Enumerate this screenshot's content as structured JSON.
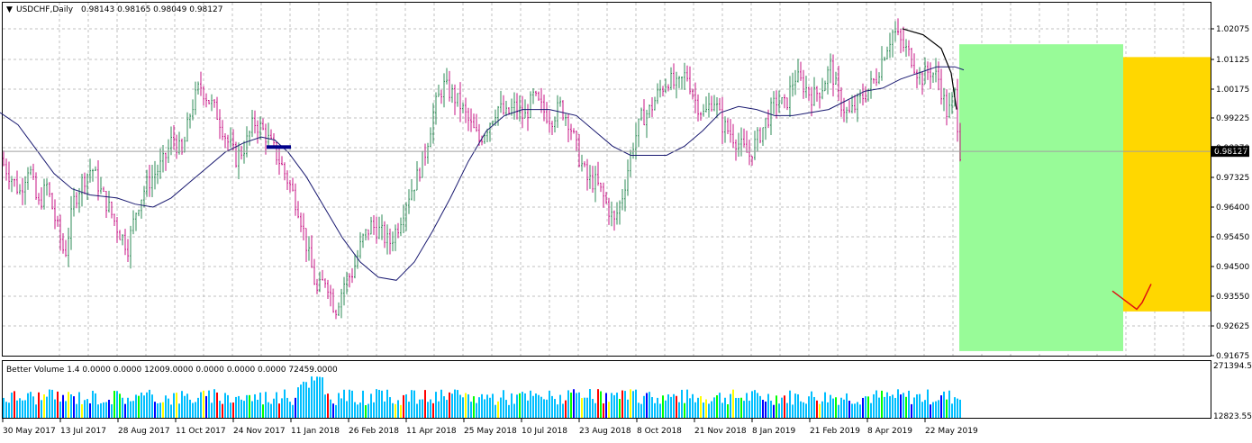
{
  "header": {
    "symbol_timeframe": "USDCHF,Daily",
    "ohlc": "0.98143 0.98165 0.98049 0.98127",
    "menu_icon": "triangle-down-icon"
  },
  "indicator": {
    "label": "Better Volume 1.4 0.0000 0.0000 12009.0000 0.0000 0.0000 0.0000 72459.0000",
    "scale_max": "271394.55",
    "scale_min": "12823.55"
  },
  "colors": {
    "bull_candle": "#2e8b57",
    "bear_candle": "#c71585",
    "ma_line": "#191970",
    "grid": "#c0c0c0",
    "green_zone": "#98fb98",
    "gold_zone": "#ffd700",
    "volume_default": "#00bfff",
    "volume_high": "#ff0000",
    "volume_climax": "#00ff00",
    "volume_low": "#ffff00",
    "volume_churn": "#0000ff",
    "current_price_bg": "#000000",
    "hand_drawn_red": "#e01010",
    "blue_marker": "#00008b"
  },
  "chart_data": {
    "type": "candlestick",
    "symbol": "USDCHF",
    "timeframe": "Daily",
    "last_price": "0.98127",
    "y_ticks": [
      "1.02075",
      "1.01125",
      "1.00175",
      "0.99225",
      "0.98270",
      "0.97325",
      "0.96400",
      "0.95450",
      "0.94500",
      "0.93550",
      "0.92625",
      "0.91675"
    ],
    "ylim": [
      0.9143,
      1.0256
    ],
    "x_ticks": [
      "30 May 2017",
      "13 Jul 2017",
      "28 Aug 2017",
      "11 Oct 2017",
      "24 Nov 2017",
      "11 Jan 2018",
      "26 Feb 2018",
      "11 Apr 2018",
      "25 May 2018",
      "10 Jul 2018",
      "23 Aug 2018",
      "8 Oct 2018",
      "21 Nov 2018",
      "8 Jan 2019",
      "21 Feb 2019",
      "8 Apr 2019",
      "22 May 2019"
    ],
    "price_path": [
      [
        0,
        0.979
      ],
      [
        12,
        0.973
      ],
      [
        22,
        0.968
      ],
      [
        32,
        0.977
      ],
      [
        42,
        0.963
      ],
      [
        52,
        0.97
      ],
      [
        62,
        0.958
      ],
      [
        72,
        0.947
      ],
      [
        82,
        0.965
      ],
      [
        92,
        0.972
      ],
      [
        102,
        0.976
      ],
      [
        112,
        0.968
      ],
      [
        122,
        0.962
      ],
      [
        132,
        0.955
      ],
      [
        142,
        0.95
      ],
      [
        152,
        0.963
      ],
      [
        162,
        0.97
      ],
      [
        172,
        0.974
      ],
      [
        182,
        0.978
      ],
      [
        192,
        0.986
      ],
      [
        202,
        0.98
      ],
      [
        212,
        0.995
      ],
      [
        222,
        1.003
      ],
      [
        232,
        0.998
      ],
      [
        242,
        0.993
      ],
      [
        252,
        0.985
      ],
      [
        262,
        0.979
      ],
      [
        272,
        0.983
      ],
      [
        282,
        0.991
      ],
      [
        292,
        0.988
      ],
      [
        302,
        0.983
      ],
      [
        312,
        0.977
      ],
      [
        322,
        0.97
      ],
      [
        332,
        0.962
      ],
      [
        342,
        0.948
      ],
      [
        352,
        0.935
      ],
      [
        362,
        0.94
      ],
      [
        372,
        0.929
      ],
      [
        382,
        0.938
      ],
      [
        392,
        0.942
      ],
      [
        402,
        0.952
      ],
      [
        412,
        0.957
      ],
      [
        422,
        0.955
      ],
      [
        432,
        0.951
      ],
      [
        442,
        0.957
      ],
      [
        452,
        0.966
      ],
      [
        462,
        0.972
      ],
      [
        472,
        0.981
      ],
      [
        482,
        0.995
      ],
      [
        492,
        1.003
      ],
      [
        502,
        1.0
      ],
      [
        512,
        0.996
      ],
      [
        522,
        0.99
      ],
      [
        532,
        0.985
      ],
      [
        542,
        0.99
      ],
      [
        552,
        0.996
      ],
      [
        562,
        0.993
      ],
      [
        572,
        0.996
      ],
      [
        582,
        0.992
      ],
      [
        592,
        0.999
      ],
      [
        602,
        0.995
      ],
      [
        612,
        0.992
      ],
      [
        622,
        0.996
      ],
      [
        632,
        0.991
      ],
      [
        642,
        0.98
      ],
      [
        652,
        0.972
      ],
      [
        662,
        0.971
      ],
      [
        672,
        0.965
      ],
      [
        682,
        0.958
      ],
      [
        692,
        0.968
      ],
      [
        702,
        0.983
      ],
      [
        712,
        0.992
      ],
      [
        722,
        0.995
      ],
      [
        732,
        1.001
      ],
      [
        742,
        1.005
      ],
      [
        752,
        1.002
      ],
      [
        762,
        1.007
      ],
      [
        772,
        0.998
      ],
      [
        782,
        0.993
      ],
      [
        792,
        0.999
      ],
      [
        802,
        0.99
      ],
      [
        812,
        0.987
      ],
      [
        822,
        0.983
      ],
      [
        832,
        0.98
      ],
      [
        842,
        0.986
      ],
      [
        852,
        0.992
      ],
      [
        862,
        0.998
      ],
      [
        872,
        0.996
      ],
      [
        882,
        1.006
      ],
      [
        892,
        1.003
      ],
      [
        902,
        0.999
      ],
      [
        912,
        1.002
      ],
      [
        922,
        1.009
      ],
      [
        932,
        0.998
      ],
      [
        942,
        0.993
      ],
      [
        952,
        0.997
      ],
      [
        962,
        1.001
      ],
      [
        972,
        1.005
      ],
      [
        982,
        1.014
      ],
      [
        992,
        1.021
      ],
      [
        1002,
        1.016
      ],
      [
        1012,
        1.012
      ],
      [
        1022,
        1.005
      ],
      [
        1032,
        1.008
      ],
      [
        1042,
        1.005
      ],
      [
        1052,
        0.993
      ],
      [
        1060,
        1.0
      ],
      [
        1066,
        0.9813
      ]
    ],
    "ma_path": [
      [
        0,
        0.994
      ],
      [
        20,
        0.99
      ],
      [
        40,
        0.982
      ],
      [
        60,
        0.974
      ],
      [
        80,
        0.969
      ],
      [
        100,
        0.967
      ],
      [
        130,
        0.966
      ],
      [
        150,
        0.964
      ],
      [
        170,
        0.963
      ],
      [
        190,
        0.966
      ],
      [
        210,
        0.971
      ],
      [
        230,
        0.976
      ],
      [
        250,
        0.981
      ],
      [
        270,
        0.984
      ],
      [
        290,
        0.986
      ],
      [
        305,
        0.985
      ],
      [
        320,
        0.981
      ],
      [
        340,
        0.973
      ],
      [
        360,
        0.963
      ],
      [
        380,
        0.953
      ],
      [
        400,
        0.945
      ],
      [
        420,
        0.94
      ],
      [
        440,
        0.939
      ],
      [
        460,
        0.945
      ],
      [
        480,
        0.955
      ],
      [
        500,
        0.966
      ],
      [
        520,
        0.978
      ],
      [
        540,
        0.988
      ],
      [
        560,
        0.993
      ],
      [
        580,
        0.995
      ],
      [
        610,
        0.995
      ],
      [
        640,
        0.993
      ],
      [
        660,
        0.988
      ],
      [
        680,
        0.983
      ],
      [
        700,
        0.98
      ],
      [
        720,
        0.98
      ],
      [
        740,
        0.98
      ],
      [
        760,
        0.983
      ],
      [
        780,
        0.988
      ],
      [
        800,
        0.994
      ],
      [
        820,
        0.996
      ],
      [
        840,
        0.995
      ],
      [
        860,
        0.993
      ],
      [
        880,
        0.993
      ],
      [
        900,
        0.994
      ],
      [
        920,
        0.995
      ],
      [
        940,
        0.998
      ],
      [
        960,
        1.001
      ],
      [
        980,
        1.002
      ],
      [
        1000,
        1.005
      ],
      [
        1020,
        1.007
      ],
      [
        1040,
        1.009
      ],
      [
        1060,
        1.009
      ],
      [
        1070,
        1.008
      ]
    ],
    "green_zone": {
      "y_top": 1.0164,
      "y_bottom": 0.9158
    },
    "gold_zone": {
      "y_top": 1.0122,
      "y_bottom": 0.9288
    },
    "hand_drawn_arc": [
      [
        1002,
        1.0215
      ],
      [
        1025,
        1.0195
      ],
      [
        1045,
        1.015
      ],
      [
        1056,
        1.007
      ],
      [
        1062,
        0.995
      ]
    ],
    "red_check": [
      [
        1235,
        0.9355
      ],
      [
        1262,
        0.9295
      ],
      [
        1268,
        0.9317
      ],
      [
        1278,
        0.9378
      ]
    ],
    "blue_marker": {
      "x_from": 296,
      "x_to": 323,
      "y": 0.9827
    }
  }
}
